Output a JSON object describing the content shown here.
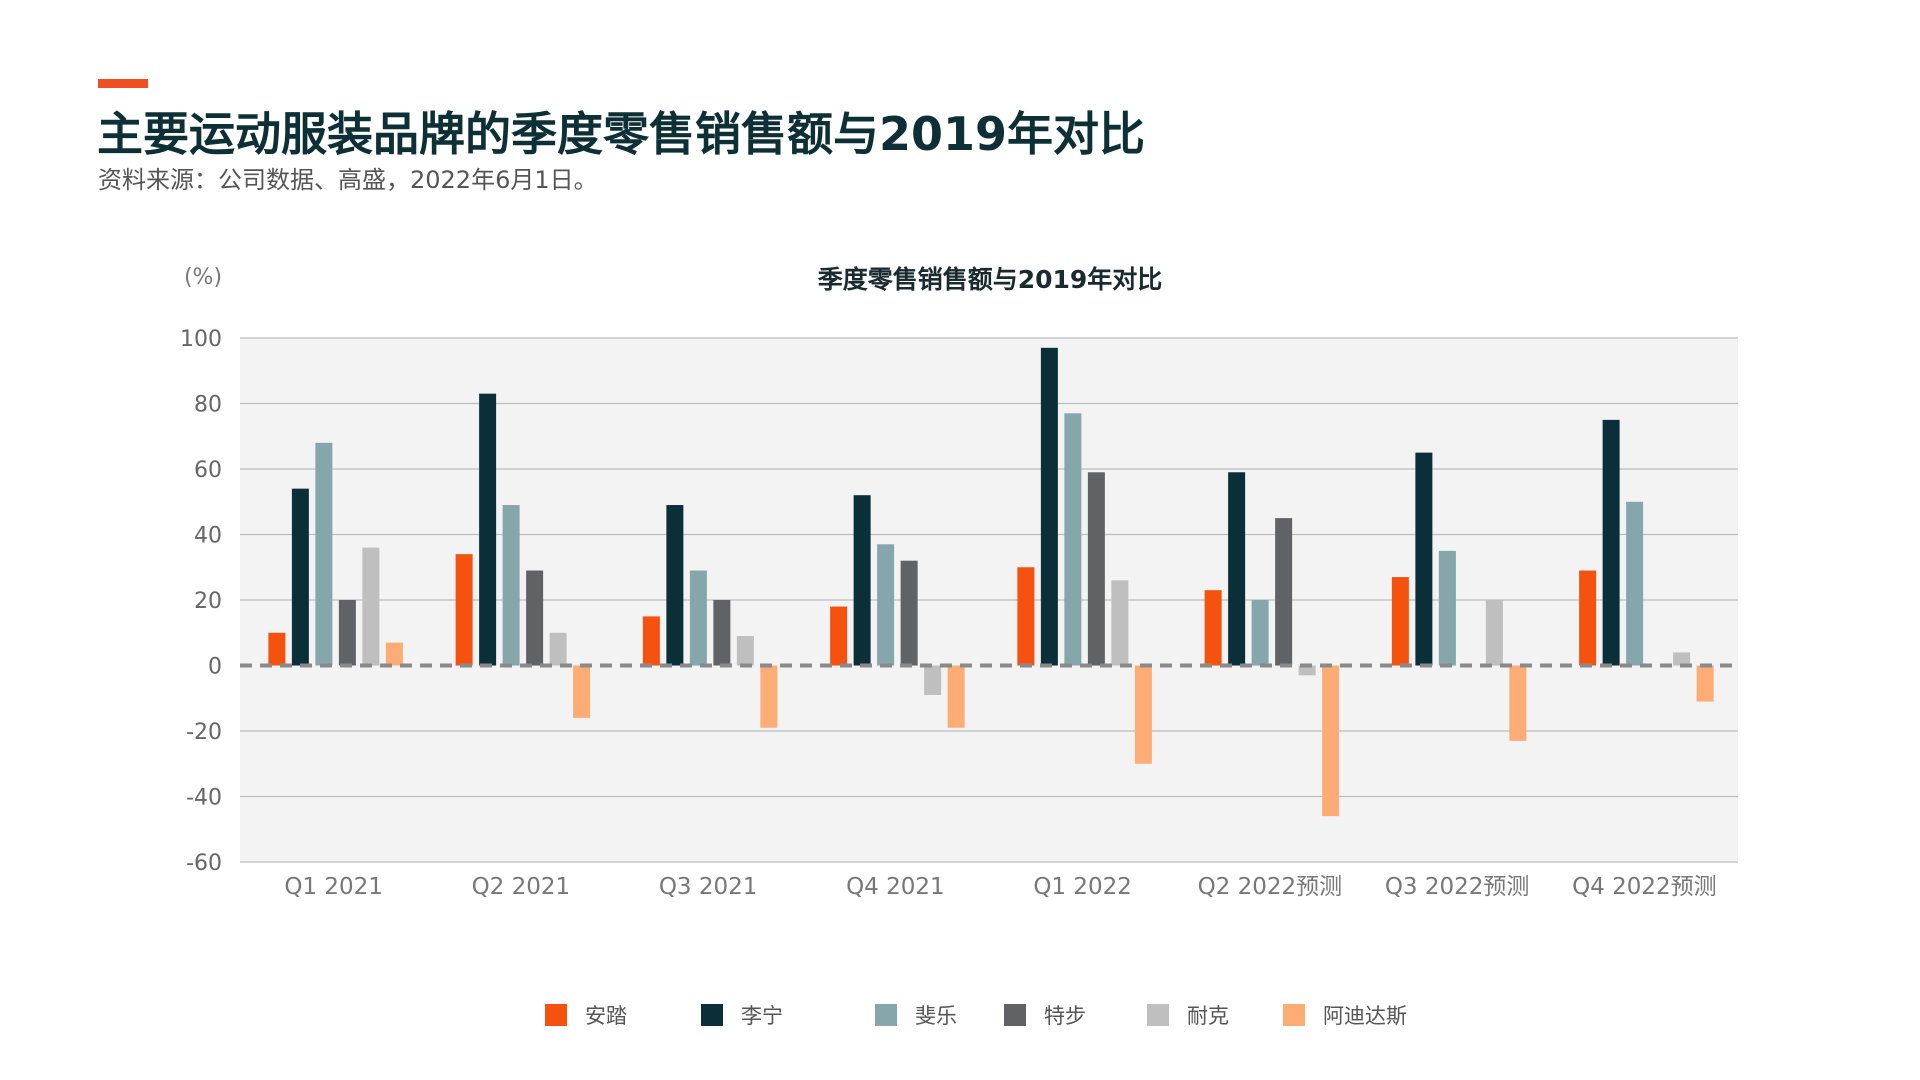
{
  "header": {
    "title": "主要运动服装品牌的季度零售销售额与2019年对比",
    "source": "资料来源：公司数据、高盛，2022年6月1日。"
  },
  "colors": {
    "accent": "#f04e23",
    "plot_background": "#f3f3f3",
    "gridline": "#bdbdbd",
    "zero_line": "#8a8a8a"
  },
  "chart_data": {
    "type": "bar",
    "title": "季度零售销售额与2019年对比",
    "unit_label": "(%)",
    "xlabel": "",
    "ylabel": "",
    "ylim": [
      -60,
      100
    ],
    "yticks": [
      100,
      80,
      60,
      40,
      20,
      0,
      -20,
      -40,
      -60
    ],
    "grid": true,
    "legend_position": "bottom",
    "categories": [
      "Q1 2021",
      "Q2 2021",
      "Q3 2021",
      "Q4 2021",
      "Q1 2022",
      "Q2 2022预测",
      "Q3 2022预测",
      "Q4 2022预测"
    ],
    "series": [
      {
        "name": "安踏",
        "color": "#f5520f",
        "values": [
          10,
          34,
          15,
          18,
          30,
          23,
          27,
          29
        ]
      },
      {
        "name": "李宁",
        "color": "#0b2f38",
        "values": [
          54,
          83,
          49,
          52,
          97,
          59,
          65,
          75
        ]
      },
      {
        "name": "斐乐",
        "color": "#85a6aa",
        "values": [
          68,
          49,
          29,
          37,
          77,
          20,
          35,
          50
        ]
      },
      {
        "name": "特步",
        "color": "#616266",
        "values": [
          20,
          29,
          20,
          32,
          59,
          45,
          null,
          null
        ]
      },
      {
        "name": "耐克",
        "color": "#bfbfbf",
        "values": [
          36,
          10,
          9,
          -9,
          26,
          -3,
          20,
          4
        ]
      },
      {
        "name": "阿迪达斯",
        "color": "#fcac74",
        "values": [
          7,
          -16,
          -19,
          -19,
          -30,
          -46,
          -23,
          -11
        ]
      }
    ]
  }
}
